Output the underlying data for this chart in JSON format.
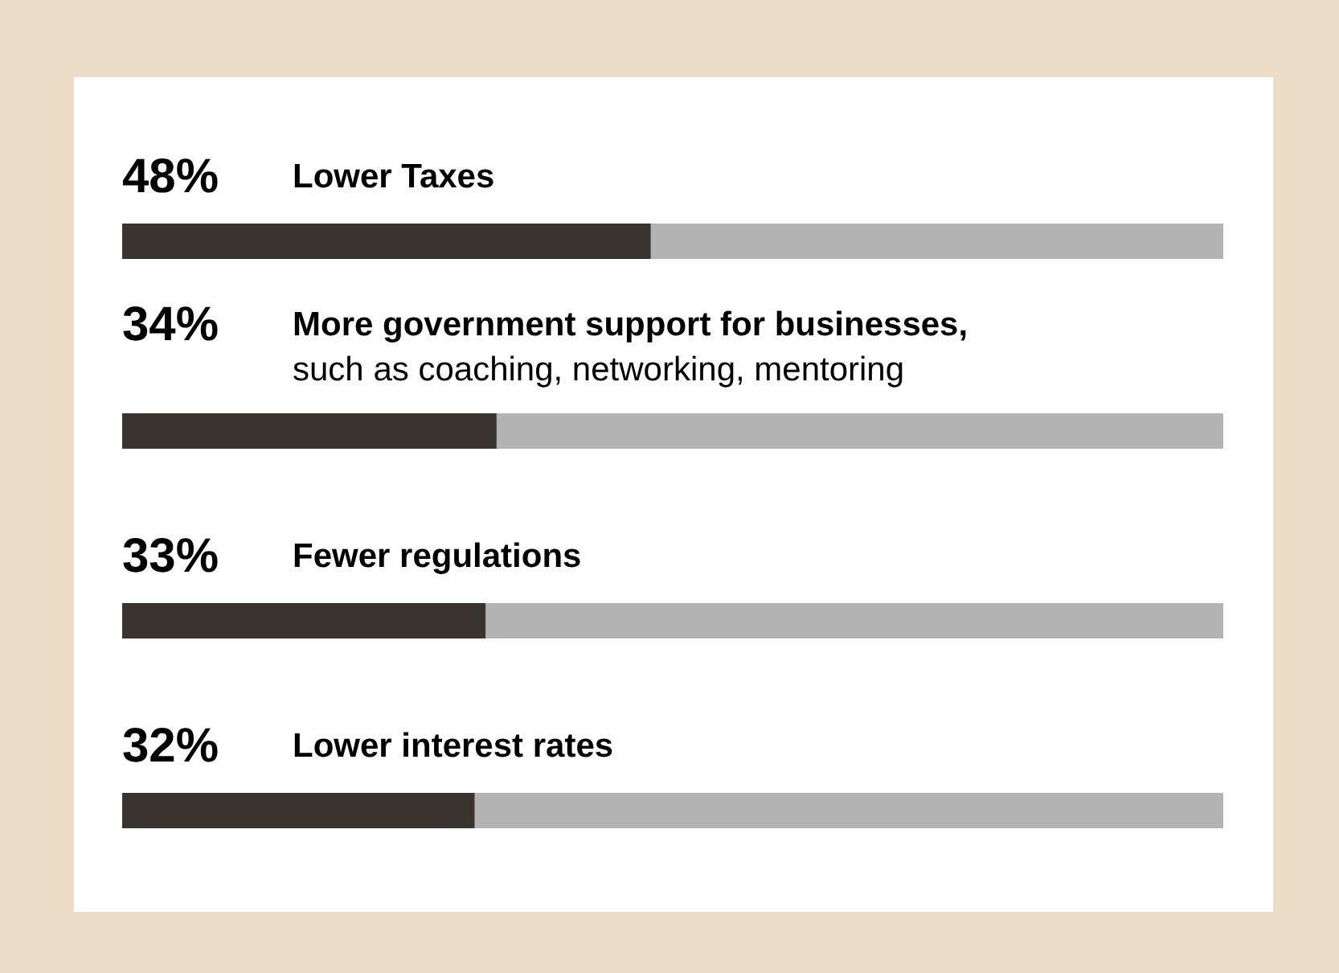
{
  "chart_data": {
    "type": "bar",
    "orientation": "horizontal",
    "categories": [
      "Lower Taxes",
      "More government support for businesses,\nsuch as coaching, networking, mentoring",
      "Fewer regulations",
      "Lower interest rates"
    ],
    "values": [
      48,
      34,
      33,
      32
    ],
    "value_labels": [
      "48%",
      "34%",
      "33%",
      "32%"
    ],
    "color": "#3a3430",
    "xlim": [
      0,
      100
    ],
    "tick_labels": false
  }
}
